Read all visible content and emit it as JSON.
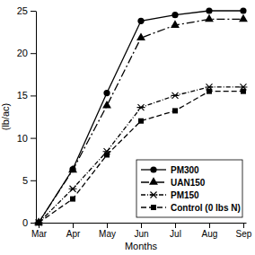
{
  "chart_data": {
    "type": "line",
    "x_label": "Months",
    "y_label": "(lb/ac)",
    "categories": [
      "Mar",
      "Apr",
      "May",
      "Jun",
      "Jul",
      "Aug",
      "Sep"
    ],
    "series": [
      {
        "name": "PM300",
        "color": "#000000",
        "marker": "circle",
        "line_style": "solid",
        "values": [
          0,
          6.3,
          15.3,
          23.8,
          24.5,
          25,
          25
        ]
      },
      {
        "name": "UAN150",
        "color": "#000000",
        "marker": "triangle",
        "line_style": "longdashdot",
        "values": [
          0,
          6.2,
          13.8,
          21.8,
          23.3,
          24,
          24
        ]
      },
      {
        "name": "PM150",
        "color": "#000000",
        "marker": "asterisk",
        "line_style": "dashdot",
        "values": [
          0,
          4,
          8.4,
          13.6,
          15,
          16,
          16
        ]
      },
      {
        "name": "Control (0 lbs N)",
        "color": "#000000",
        "marker": "square",
        "line_style": "dashed",
        "values": [
          0,
          2.8,
          8,
          12,
          13.2,
          15.5,
          15.5
        ]
      }
    ],
    "ylim": [
      0,
      25
    ],
    "yticks": [
      0,
      5,
      10,
      15,
      20,
      25
    ],
    "grid": false,
    "legend": "lower right"
  }
}
